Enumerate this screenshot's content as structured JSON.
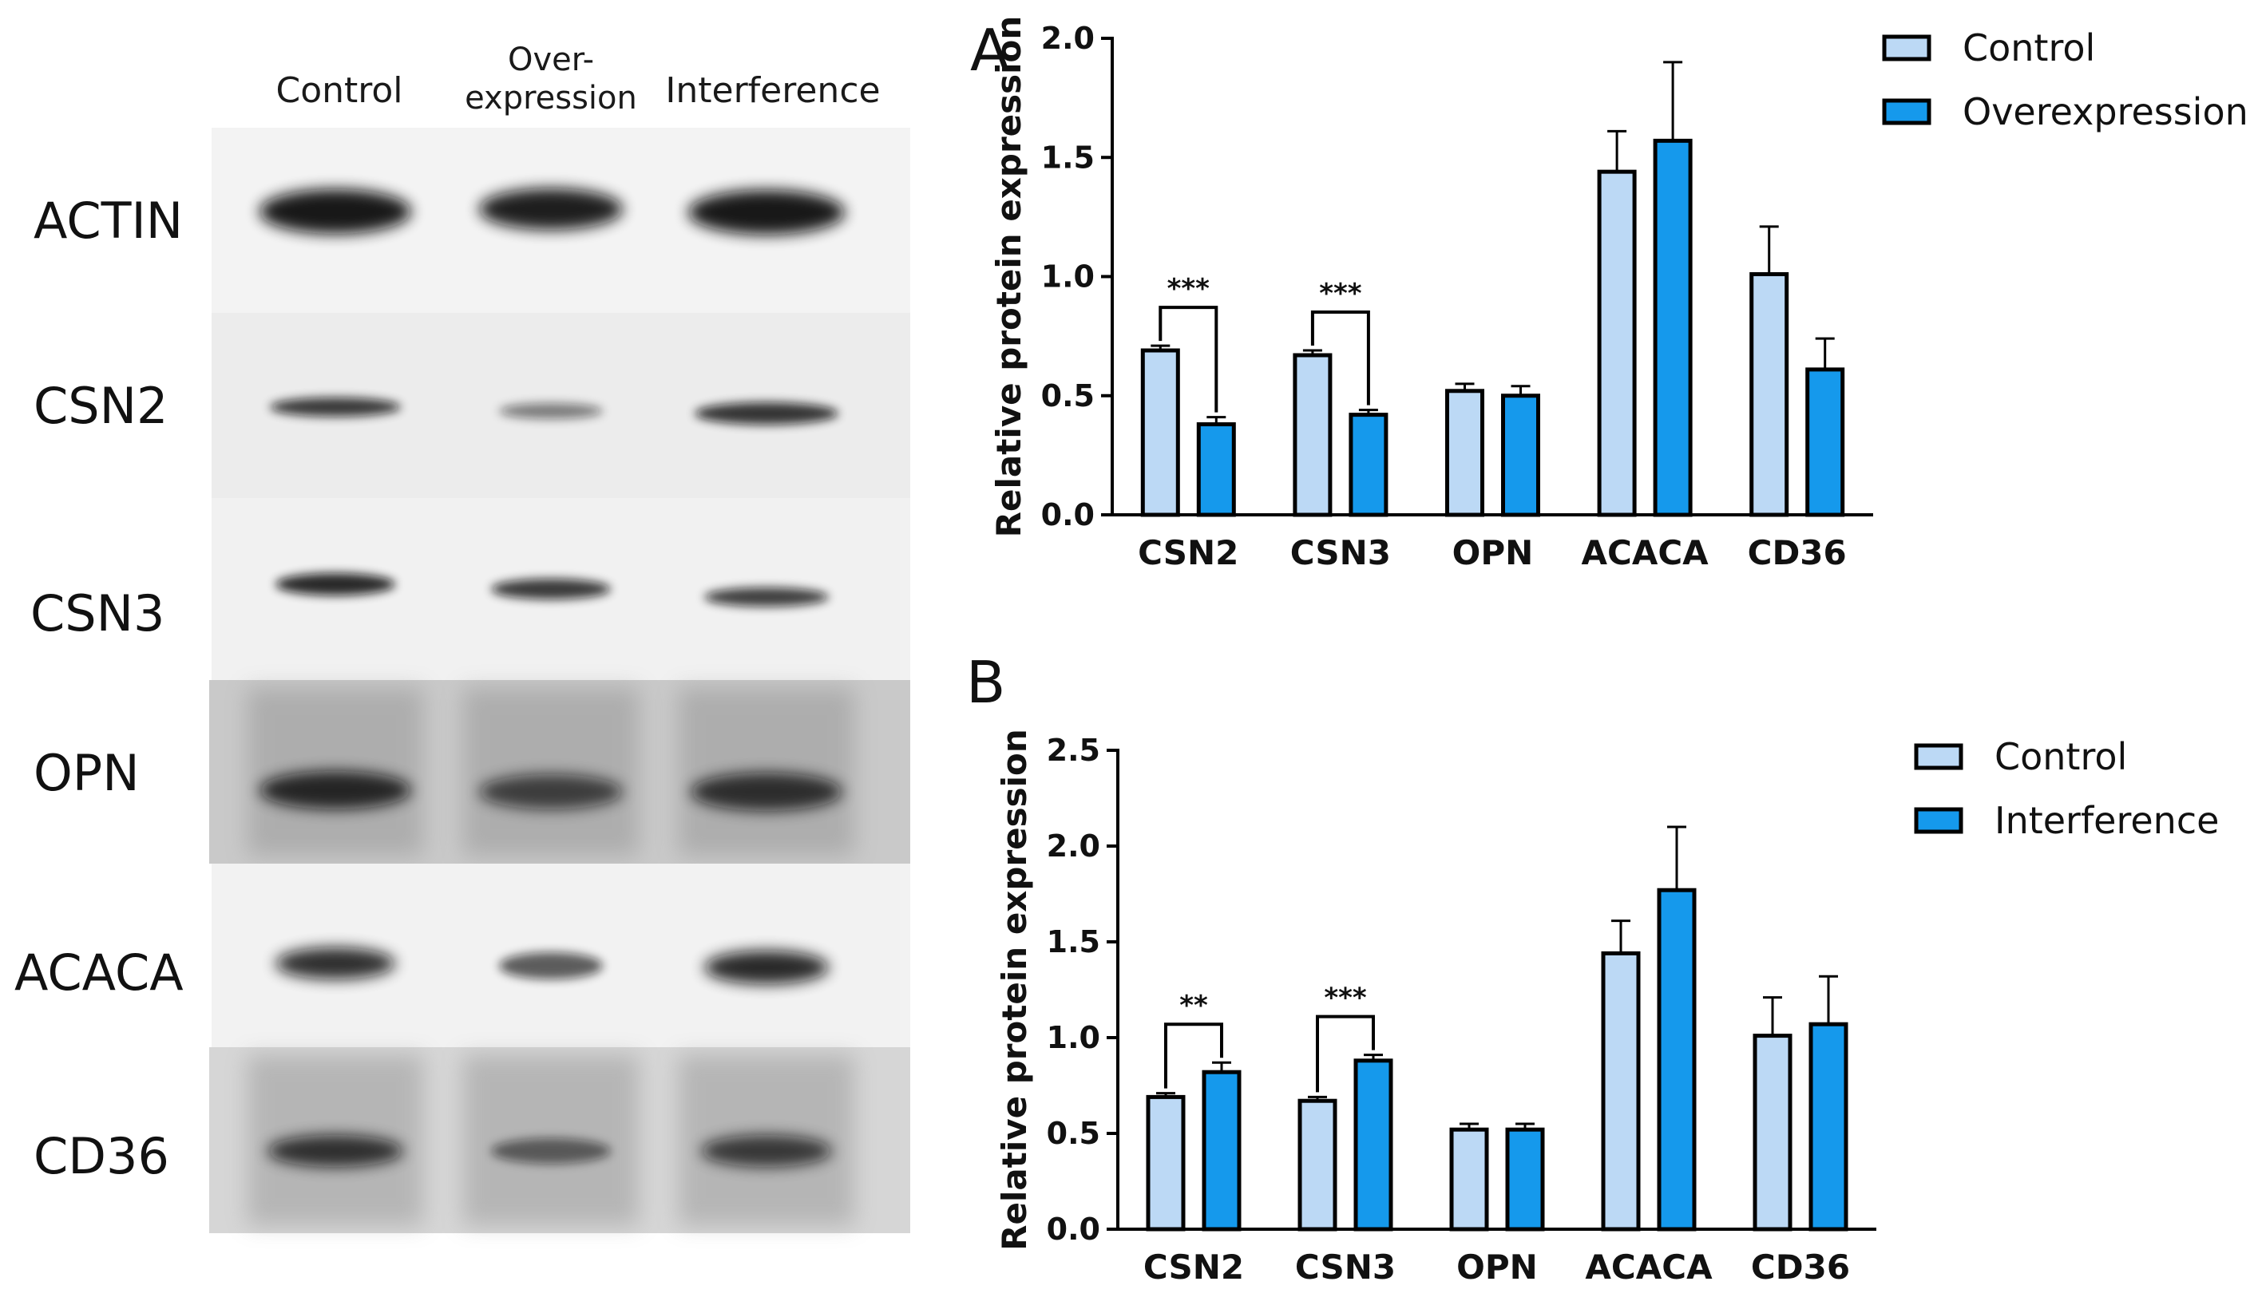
{
  "blot": {
    "lanes": [
      "Control",
      "Over-\nexpression",
      "Interference"
    ],
    "rows": [
      "ACTIN",
      "CSN2",
      "CSN3",
      "OPN",
      "ACACA",
      "CD36"
    ]
  },
  "colors": {
    "control": "#bcd9f5",
    "overexpression": "#1599ec",
    "interference": "#1599ec",
    "outline": "#000000"
  },
  "chart_data": [
    {
      "type": "bar",
      "panel": "A",
      "categories": [
        "CSN2",
        "CSN3",
        "OPN",
        "ACACA",
        "CD36"
      ],
      "ylabel": "Relative protein expression",
      "ylim": [
        0,
        2.0
      ],
      "yticks": [
        "0.0",
        "0.5",
        "1.0",
        "1.5",
        "2.0"
      ],
      "series": [
        {
          "name": "Control",
          "values": [
            0.69,
            0.67,
            0.52,
            1.44,
            1.01
          ],
          "errors": [
            0.02,
            0.02,
            0.03,
            0.17,
            0.2
          ]
        },
        {
          "name": "Overexpression",
          "values": [
            0.38,
            0.42,
            0.5,
            1.57,
            0.61
          ],
          "errors": [
            0.03,
            0.02,
            0.04,
            0.33,
            0.13
          ]
        }
      ],
      "significance": [
        {
          "category": "CSN2",
          "label": "***"
        },
        {
          "category": "CSN3",
          "label": "***"
        }
      ],
      "legend_position": "top-right"
    },
    {
      "type": "bar",
      "panel": "B",
      "categories": [
        "CSN2",
        "CSN3",
        "OPN",
        "ACACA",
        "CD36"
      ],
      "ylabel": "Relative protein expression",
      "ylim": [
        0,
        2.5
      ],
      "yticks": [
        "0.0",
        "0.5",
        "1.0",
        "1.5",
        "2.0",
        "2.5"
      ],
      "series": [
        {
          "name": "Control",
          "values": [
            0.69,
            0.67,
            0.52,
            1.44,
            1.01
          ],
          "errors": [
            0.02,
            0.02,
            0.03,
            0.17,
            0.2
          ]
        },
        {
          "name": "Interference",
          "values": [
            0.82,
            0.88,
            0.52,
            1.77,
            1.07
          ],
          "errors": [
            0.05,
            0.03,
            0.03,
            0.33,
            0.25
          ]
        }
      ],
      "significance": [
        {
          "category": "CSN2",
          "label": "**"
        },
        {
          "category": "CSN3",
          "label": "***"
        }
      ],
      "legend_position": "top-right"
    }
  ]
}
